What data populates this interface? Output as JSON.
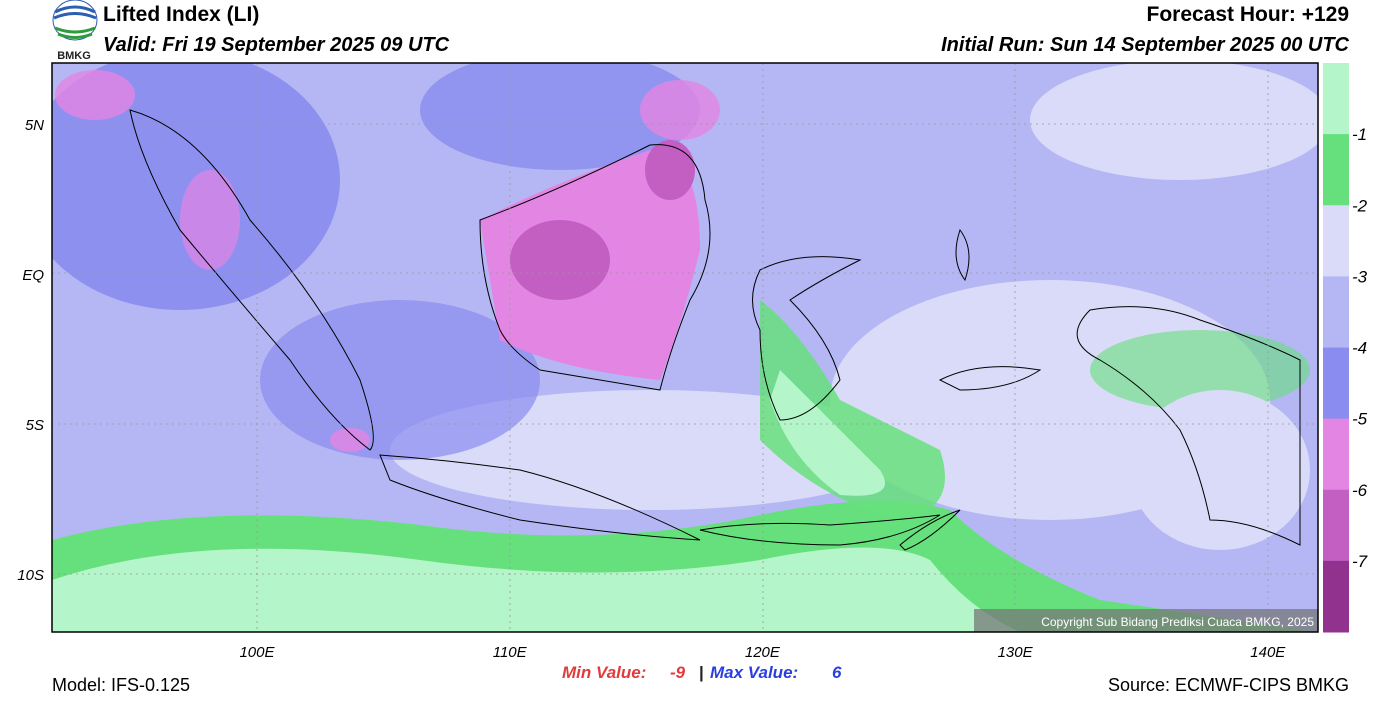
{
  "header": {
    "title": "Lifted Index (LI)",
    "valid": "Valid: Fri 19 September 2025 09 UTC",
    "forecast_hour": "Forecast Hour: +129",
    "initial_run": "Initial Run: Sun 14 September 2025 00 UTC",
    "logo_text": "BMKG"
  },
  "map": {
    "lat_labels": [
      "5N",
      "EQ",
      "5S",
      "10S"
    ],
    "lon_labels": [
      "100E",
      "110E",
      "120E",
      "130E",
      "140E"
    ],
    "copyright": "Copyright Sub Bidang Prediksi Cuaca BMKG, 2025"
  },
  "colorbar": {
    "labels": [
      -1,
      -2,
      -3,
      -4,
      -5,
      -6,
      -7
    ],
    "colors": [
      "#b4f5c9",
      "#66e07c",
      "#d9dbf8",
      "#b5b7f4",
      "#8a8cef",
      "#e385e3",
      "#c35ec3",
      "#91328f"
    ]
  },
  "footer": {
    "model": "Model: IFS-0.125",
    "min_label": "Min Value:",
    "min_value": -9,
    "separator": "|",
    "max_label": "Max Value:",
    "max_value": 6,
    "source": "Source: ECMWF-CIPS BMKG"
  }
}
